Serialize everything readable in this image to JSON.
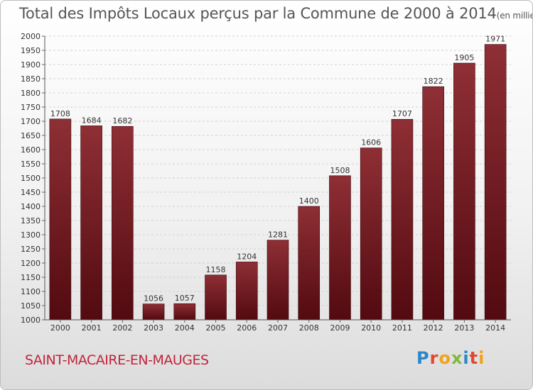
{
  "title": "Total des Impôts Locaux perçus par la Commune de 2000 à 2014",
  "title_unit": "(en milliers d'€)",
  "commune": "SAINT-MACAIRE-EN-MAUGES",
  "logo": "Proxiti",
  "colors": {
    "bar_light": "#8e2f35",
    "bar_dark": "#5a0c12",
    "commune": "#c1253a"
  },
  "chart_data": {
    "type": "bar",
    "title": "Total des Impôts Locaux perçus par la Commune de 2000 à 2014",
    "unit": "(en milliers d'€)",
    "categories": [
      "2000",
      "2001",
      "2002",
      "2003",
      "2004",
      "2005",
      "2006",
      "2007",
      "2008",
      "2009",
      "2010",
      "2011",
      "2012",
      "2013",
      "2014"
    ],
    "values": [
      1708,
      1684,
      1682,
      1056,
      1057,
      1158,
      1204,
      1281,
      1400,
      1508,
      1606,
      1707,
      1822,
      1905,
      1971
    ],
    "ylim": [
      1000,
      2000
    ],
    "yticks": [
      1000,
      1050,
      1100,
      1150,
      1200,
      1250,
      1300,
      1350,
      1400,
      1450,
      1500,
      1550,
      1600,
      1650,
      1700,
      1750,
      1800,
      1850,
      1900,
      1950,
      2000
    ],
    "grid": true,
    "xlabel": "",
    "ylabel": ""
  }
}
